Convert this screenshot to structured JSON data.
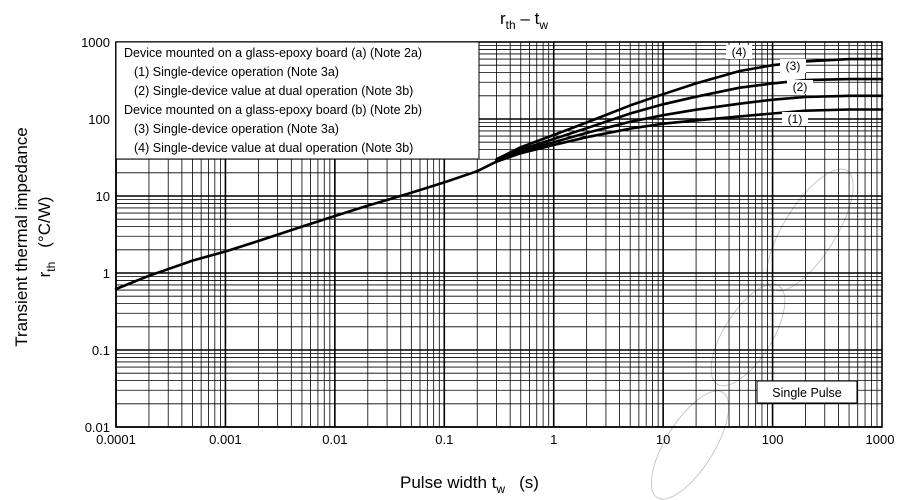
{
  "chart_data": {
    "type": "line",
    "title_main": "r",
    "title_sub_1": "th",
    "title_dash": " – ",
    "title_main_2": "t",
    "title_sub_2": "w",
    "xlabel_main": "Pulse width   t",
    "xlabel_sub": "w",
    "xlabel_unit": "(s)",
    "ylabel_line1": "Transient thermal impedance",
    "ylabel_main": "r",
    "ylabel_sub": "th",
    "ylabel_unit": "(°C/W)",
    "x_scale": "log",
    "y_scale": "log",
    "xlim": [
      0.0001,
      1000
    ],
    "ylim": [
      0.01,
      1000
    ],
    "x_ticks": [
      "0.0001",
      "0.001",
      "0.01",
      "0.1",
      "1",
      "10",
      "100",
      "1000"
    ],
    "y_ticks": [
      "1000",
      "100",
      "10",
      "1",
      "0.1",
      "0.01"
    ],
    "grid": true,
    "legend_lines": [
      "Device mounted on a glass-epoxy board (a) (Note 2a)",
      "(1) Single-device operation (Note 3a)",
      "(2) Single-device value at dual operation (Note 3b)",
      "Device mounted on a glass-epoxy board (b) (Note 2b)",
      "(3) Single-device operation (Note 3a)",
      "(4) Single-device value at dual operation (Note 3b)"
    ],
    "legend_placement": "top-left",
    "annotation": "Single Pulse",
    "common_curve": [
      [
        0.0001,
        0.62
      ],
      [
        0.0002,
        0.92
      ],
      [
        0.0005,
        1.45
      ],
      [
        0.001,
        1.9
      ],
      [
        0.002,
        2.6
      ],
      [
        0.005,
        4.0
      ],
      [
        0.01,
        5.5
      ],
      [
        0.02,
        7.5
      ],
      [
        0.05,
        11
      ],
      [
        0.1,
        15
      ],
      [
        0.2,
        21
      ],
      [
        0.3,
        28
      ]
    ],
    "series": [
      {
        "name": "(1)",
        "values": [
          [
            0.3,
            28
          ],
          [
            0.5,
            36
          ],
          [
            1,
            46
          ],
          [
            2,
            58
          ],
          [
            5,
            75
          ],
          [
            10,
            87
          ],
          [
            20,
            96
          ],
          [
            50,
            108
          ],
          [
            100,
            118
          ],
          [
            200,
            128
          ],
          [
            500,
            133
          ],
          [
            1000,
            133
          ]
        ]
      },
      {
        "name": "(2)",
        "values": [
          [
            0.3,
            28
          ],
          [
            0.5,
            38
          ],
          [
            1,
            50
          ],
          [
            2,
            66
          ],
          [
            5,
            92
          ],
          [
            10,
            112
          ],
          [
            20,
            132
          ],
          [
            50,
            158
          ],
          [
            100,
            178
          ],
          [
            200,
            193
          ],
          [
            500,
            200
          ],
          [
            1000,
            200
          ]
        ]
      },
      {
        "name": "(3)",
        "values": [
          [
            0.3,
            29
          ],
          [
            0.5,
            40
          ],
          [
            1,
            55
          ],
          [
            2,
            76
          ],
          [
            5,
            118
          ],
          [
            10,
            155
          ],
          [
            20,
            195
          ],
          [
            50,
            255
          ],
          [
            100,
            290
          ],
          [
            200,
            320
          ],
          [
            500,
            330
          ],
          [
            1000,
            330
          ]
        ]
      },
      {
        "name": "(4)",
        "values": [
          [
            0.3,
            30
          ],
          [
            0.5,
            43
          ],
          [
            1,
            62
          ],
          [
            2,
            90
          ],
          [
            5,
            150
          ],
          [
            10,
            210
          ],
          [
            20,
            290
          ],
          [
            50,
            420
          ],
          [
            100,
            500
          ],
          [
            200,
            560
          ],
          [
            500,
            600
          ],
          [
            1000,
            600
          ]
        ]
      }
    ]
  },
  "colors": {
    "line": "#000000",
    "grid": "#000000",
    "watermark": "#c8c8c8",
    "background": "#ffffff"
  }
}
